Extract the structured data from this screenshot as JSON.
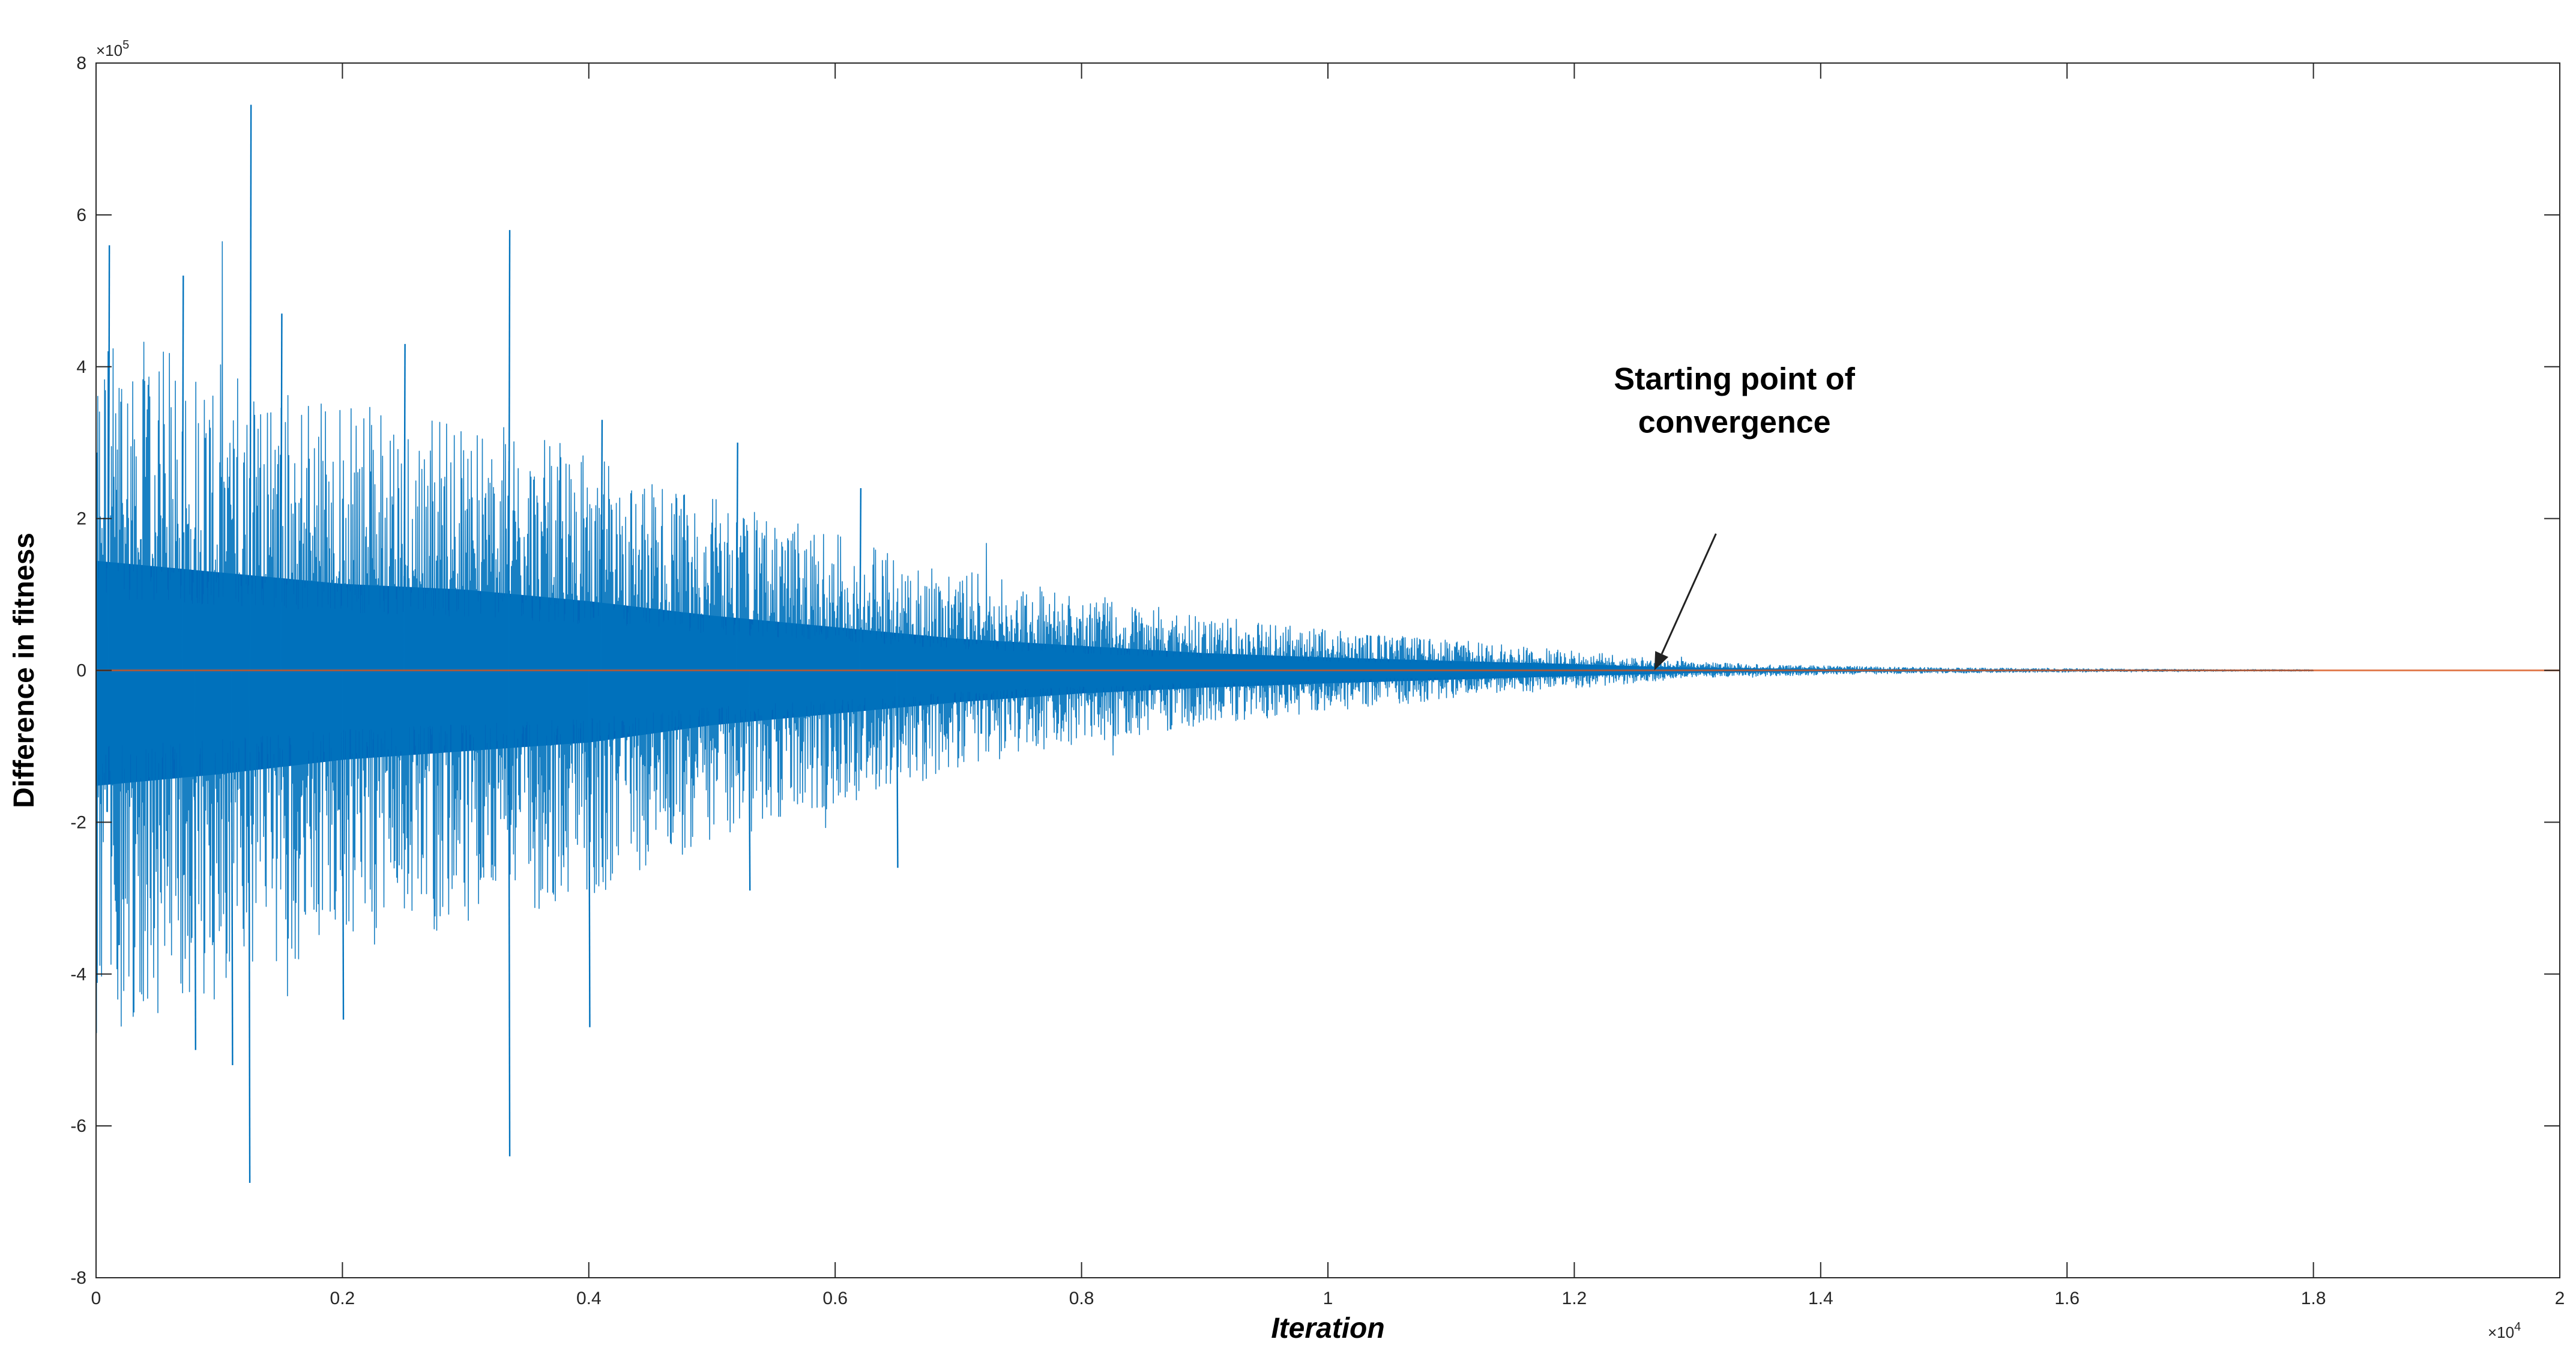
{
  "chart_data": {
    "type": "line",
    "title": "",
    "xlabel": "Iteration",
    "ylabel": "Difference in fitness",
    "x_multiplier_label": "×10",
    "x_multiplier_exp": "4",
    "y_multiplier_label": "×10",
    "y_multiplier_exp": "5",
    "xlim": [
      0,
      20000
    ],
    "ylim": [
      -800000,
      800000
    ],
    "x_ticks": [
      0,
      2000,
      4000,
      6000,
      8000,
      10000,
      12000,
      14000,
      16000,
      18000,
      20000
    ],
    "x_tick_labels": [
      "0",
      "0.2",
      "0.4",
      "0.6",
      "0.8",
      "1",
      "1.2",
      "1.4",
      "1.6",
      "1.8",
      "2"
    ],
    "y_ticks": [
      -800000,
      -600000,
      -400000,
      -200000,
      0,
      200000,
      400000,
      600000,
      800000
    ],
    "y_tick_labels": [
      "-8",
      "-6",
      "-4",
      "-2",
      "0",
      "2",
      "4",
      "6",
      "8"
    ],
    "grid": false,
    "legend": "none",
    "series": [
      {
        "color": "#0072BD",
        "x_range": [
          0,
          18000
        ],
        "envelope_x": [
          0,
          1000,
          2000,
          3000,
          4000,
          5000,
          6000,
          7000,
          8000,
          9000,
          10000,
          11000,
          12000,
          12700,
          13000,
          14000,
          15000,
          16000,
          17000,
          18000
        ],
        "envelope_upper": [
          380000,
          340000,
          300000,
          280000,
          240000,
          190000,
          150000,
          110000,
          85000,
          60000,
          45000,
          33000,
          22000,
          12000,
          9000,
          5000,
          3000,
          2000,
          1200,
          800
        ],
        "envelope_lower": [
          -400000,
          -360000,
          -310000,
          -280000,
          -250000,
          -190000,
          -150000,
          -110000,
          -80000,
          -60000,
          -45000,
          -32000,
          -20000,
          -12000,
          -8000,
          -5000,
          -3000,
          -2000,
          -1200,
          -800
        ],
        "peaks": [
          {
            "x": 1250,
            "y": 745000
          },
          {
            "x": 1240,
            "y": -675000
          },
          {
            "x": 3350,
            "y": 580000
          },
          {
            "x": 3350,
            "y": -640000
          },
          {
            "x": 100,
            "y": 560000
          },
          {
            "x": 700,
            "y": 520000
          },
          {
            "x": 1500,
            "y": 470000
          },
          {
            "x": 2500,
            "y": 430000
          },
          {
            "x": 4100,
            "y": 330000
          },
          {
            "x": 4000,
            "y": -470000
          },
          {
            "x": 2000,
            "y": -460000
          },
          {
            "x": 1100,
            "y": -520000
          },
          {
            "x": 800,
            "y": -500000
          },
          {
            "x": 5200,
            "y": 300000
          },
          {
            "x": 5300,
            "y": -290000
          },
          {
            "x": 6500,
            "y": -260000
          },
          {
            "x": 6200,
            "y": 240000
          }
        ]
      },
      {
        "color": "#D95319",
        "x": [
          0,
          20000
        ],
        "y": [
          0,
          0
        ]
      }
    ],
    "annotations": [
      {
        "text_lines": [
          "Starting point of",
          "convergence"
        ],
        "x": 13300,
        "y": 370000,
        "arrow_to_x": 12650,
        "arrow_to_y": 0,
        "arrow_from_x": 13150,
        "arrow_from_y": 180000
      }
    ]
  }
}
